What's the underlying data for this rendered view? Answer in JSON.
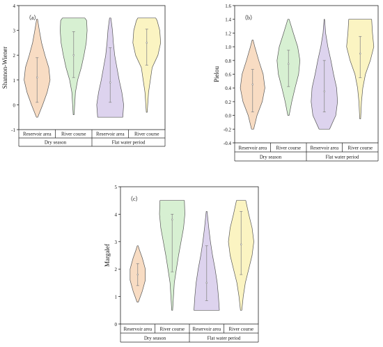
{
  "colors": {
    "reservoir_dry": "#f8dcc3",
    "river_dry": "#d7f0d2",
    "reservoir_flat": "#ddd3ee",
    "river_flat": "#fbf4c2",
    "outline": "#555555",
    "axis": "#222222"
  },
  "chart_data": [
    {
      "type": "violin",
      "panel_label": "（a）",
      "ylabel": "Shannon-Wiener",
      "ylim": [
        -1,
        4
      ],
      "yticks": [
        "-1",
        "0",
        "1",
        "2",
        "3",
        "4"
      ],
      "categories": [
        "Reservoir area",
        "River course",
        "Reservoir area",
        "River course"
      ],
      "groups": [
        {
          "label": "Dry season",
          "span": [
            0,
            1
          ]
        },
        {
          "label": "Flat water period",
          "span": [
            2,
            3
          ]
        }
      ],
      "violins": [
        {
          "category": "Reservoir area",
          "group": "Dry season",
          "color": "reservoir_dry",
          "min": -0.5,
          "max": 3.45,
          "q1": 0.1,
          "q3": 1.9,
          "median": 1.1,
          "profile": [
            [
              -0.5,
              0.03
            ],
            [
              0.0,
              0.25
            ],
            [
              0.5,
              0.45
            ],
            [
              1.0,
              0.58
            ],
            [
              1.5,
              0.52
            ],
            [
              2.0,
              0.35
            ],
            [
              2.5,
              0.2
            ],
            [
              3.0,
              0.1
            ],
            [
              3.45,
              0.02
            ]
          ]
        },
        {
          "category": "River course",
          "group": "Dry season",
          "color": "river_dry",
          "min": -0.4,
          "max": 3.5,
          "q1": 1.1,
          "q3": 2.95,
          "median": 2.0,
          "profile": [
            [
              -0.4,
              0.02
            ],
            [
              0.5,
              0.08
            ],
            [
              1.0,
              0.18
            ],
            [
              1.5,
              0.34
            ],
            [
              2.0,
              0.46
            ],
            [
              2.5,
              0.56
            ],
            [
              3.0,
              0.6
            ],
            [
              3.4,
              0.58
            ],
            [
              3.5,
              0.5
            ]
          ]
        },
        {
          "category": "Reservoir area",
          "group": "Flat water period",
          "color": "reservoir_flat",
          "min": -0.5,
          "max": 3.5,
          "q1": 0.1,
          "q3": 2.3,
          "median": 0.9,
          "profile": [
            [
              -0.5,
              0.56
            ],
            [
              0.0,
              0.6
            ],
            [
              0.5,
              0.52
            ],
            [
              1.0,
              0.4
            ],
            [
              1.5,
              0.3
            ],
            [
              2.0,
              0.2
            ],
            [
              2.5,
              0.14
            ],
            [
              3.0,
              0.1
            ],
            [
              3.5,
              0.03
            ]
          ]
        },
        {
          "category": "River course",
          "group": "Flat water period",
          "color": "river_flat",
          "min": -0.3,
          "max": 3.5,
          "q1": 1.6,
          "q3": 3.05,
          "median": 2.5,
          "profile": [
            [
              -0.3,
              0.02
            ],
            [
              0.5,
              0.08
            ],
            [
              1.0,
              0.16
            ],
            [
              1.5,
              0.24
            ],
            [
              2.0,
              0.5
            ],
            [
              2.5,
              0.62
            ],
            [
              3.0,
              0.58
            ],
            [
              3.4,
              0.46
            ],
            [
              3.5,
              0.4
            ]
          ]
        }
      ],
      "group_labels": [
        "Dry season",
        "Flat water period"
      ]
    },
    {
      "type": "violin",
      "panel_label": "（b）",
      "ylabel": "Pielou",
      "ylim": [
        -0.4,
        1.6
      ],
      "yticks": [
        "-0.4",
        "-0.2",
        "0.0",
        "0.2",
        "0.4",
        "0.6",
        "0.8",
        "1.0",
        "1.2",
        "1.4",
        "1.6"
      ],
      "categories": [
        "Reservoir area",
        "River course",
        "Reservoir area",
        "River course"
      ],
      "groups": [
        {
          "label": "Dry season",
          "span": [
            0,
            1
          ]
        },
        {
          "label": "Flat water period",
          "span": [
            2,
            3
          ]
        }
      ],
      "violins": [
        {
          "category": "Reservoir area",
          "group": "Dry season",
          "color": "reservoir_dry",
          "min": -0.2,
          "max": 1.1,
          "q1": 0.05,
          "q3": 0.67,
          "median": 0.45,
          "profile": [
            [
              -0.2,
              0.05
            ],
            [
              0.0,
              0.2
            ],
            [
              0.2,
              0.44
            ],
            [
              0.4,
              0.56
            ],
            [
              0.6,
              0.48
            ],
            [
              0.8,
              0.28
            ],
            [
              1.0,
              0.1
            ],
            [
              1.1,
              0.02
            ]
          ]
        },
        {
          "category": "River course",
          "group": "Dry season",
          "color": "river_dry",
          "min": 0.0,
          "max": 1.4,
          "q1": 0.42,
          "q3": 0.95,
          "median": 0.75,
          "profile": [
            [
              0.0,
              0.03
            ],
            [
              0.2,
              0.15
            ],
            [
              0.4,
              0.3
            ],
            [
              0.6,
              0.46
            ],
            [
              0.8,
              0.52
            ],
            [
              1.0,
              0.42
            ],
            [
              1.2,
              0.22
            ],
            [
              1.4,
              0.03
            ]
          ]
        },
        {
          "category": "Reservoir area",
          "group": "Flat water period",
          "color": "reservoir_flat",
          "min": -0.2,
          "max": 1.4,
          "q1": 0.05,
          "q3": 0.8,
          "median": 0.35,
          "profile": [
            [
              -0.2,
              0.24
            ],
            [
              0.0,
              0.52
            ],
            [
              0.2,
              0.6
            ],
            [
              0.4,
              0.56
            ],
            [
              0.6,
              0.42
            ],
            [
              0.8,
              0.3
            ],
            [
              1.0,
              0.16
            ],
            [
              1.2,
              0.06
            ],
            [
              1.4,
              0.01
            ]
          ]
        },
        {
          "category": "River course",
          "group": "Flat water period",
          "color": "river_flat",
          "min": -0.05,
          "max": 1.4,
          "q1": 0.55,
          "q3": 1.15,
          "median": 0.9,
          "profile": [
            [
              -0.05,
              0.02
            ],
            [
              0.2,
              0.06
            ],
            [
              0.4,
              0.12
            ],
            [
              0.6,
              0.24
            ],
            [
              0.8,
              0.46
            ],
            [
              1.0,
              0.62
            ],
            [
              1.2,
              0.56
            ],
            [
              1.4,
              0.52
            ]
          ]
        }
      ],
      "group_labels": [
        "Dry season",
        "Flat water period"
      ]
    },
    {
      "type": "violin",
      "panel_label": "（c）",
      "ylabel": "Margalef",
      "ylim": [
        0,
        5
      ],
      "yticks": [
        "0",
        "1",
        "2",
        "3",
        "4",
        "5"
      ],
      "categories": [
        "Reservoir area",
        "River course",
        "Reservoir area",
        "River course"
      ],
      "groups": [
        {
          "label": "Dry season",
          "span": [
            0,
            1
          ]
        },
        {
          "label": "Flat water period",
          "span": [
            2,
            3
          ]
        }
      ],
      "violins": [
        {
          "category": "Reservoir area",
          "group": "Dry season",
          "color": "reservoir_dry",
          "min": 0.8,
          "max": 2.85,
          "q1": 1.4,
          "q3": 2.2,
          "median": 1.8,
          "profile": [
            [
              0.8,
              0.03
            ],
            [
              1.2,
              0.22
            ],
            [
              1.6,
              0.36
            ],
            [
              2.0,
              0.36
            ],
            [
              2.4,
              0.22
            ],
            [
              2.7,
              0.08
            ],
            [
              2.85,
              0.02
            ]
          ]
        },
        {
          "category": "River course",
          "group": "Dry season",
          "color": "river_dry",
          "min": 0.5,
          "max": 4.5,
          "q1": 1.9,
          "q3": 4.0,
          "median": 3.8,
          "profile": [
            [
              0.5,
              0.02
            ],
            [
              1.5,
              0.1
            ],
            [
              2.0,
              0.2
            ],
            [
              2.5,
              0.3
            ],
            [
              3.0,
              0.42
            ],
            [
              3.5,
              0.54
            ],
            [
              4.0,
              0.6
            ],
            [
              4.5,
              0.58
            ]
          ]
        },
        {
          "category": "Reservoir area",
          "group": "Flat water period",
          "color": "reservoir_flat",
          "min": 0.5,
          "max": 4.1,
          "q1": 0.85,
          "q3": 2.85,
          "median": 1.5,
          "profile": [
            [
              0.5,
              0.6
            ],
            [
              1.0,
              0.56
            ],
            [
              1.5,
              0.5
            ],
            [
              2.0,
              0.4
            ],
            [
              2.5,
              0.28
            ],
            [
              3.0,
              0.18
            ],
            [
              3.5,
              0.1
            ],
            [
              4.1,
              0.02
            ]
          ]
        },
        {
          "category": "River course",
          "group": "Flat water period",
          "color": "river_flat",
          "min": 0.5,
          "max": 4.5,
          "q1": 1.8,
          "q3": 4.1,
          "median": 2.9,
          "profile": [
            [
              0.5,
              0.03
            ],
            [
              1.0,
              0.1
            ],
            [
              1.5,
              0.2
            ],
            [
              2.0,
              0.36
            ],
            [
              2.5,
              0.52
            ],
            [
              3.0,
              0.6
            ],
            [
              3.5,
              0.52
            ],
            [
              4.0,
              0.36
            ],
            [
              4.5,
              0.22
            ]
          ]
        }
      ],
      "group_labels": [
        "Dry season",
        "Flat water period"
      ]
    }
  ]
}
